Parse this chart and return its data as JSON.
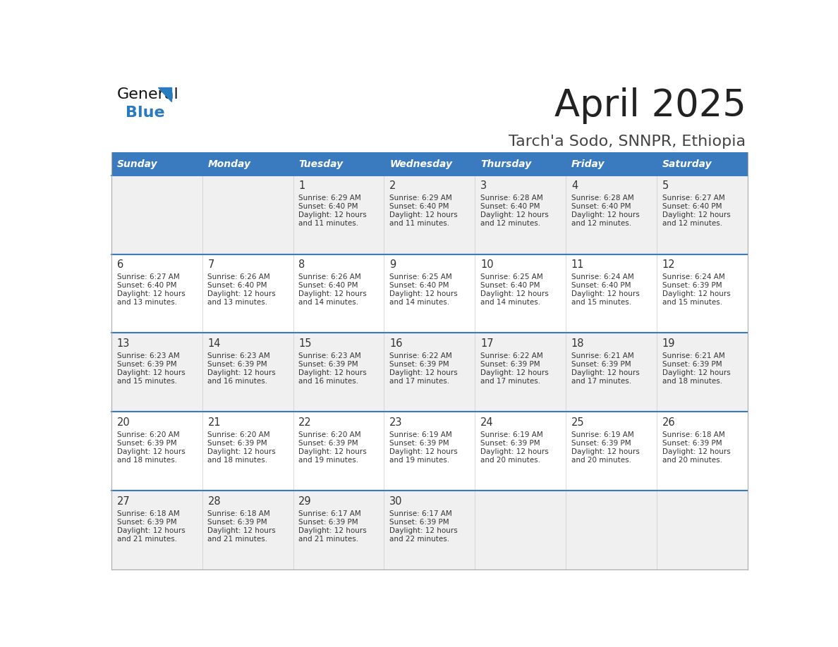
{
  "title": "April 2025",
  "subtitle": "Tarch'a Sodo, SNNPR, Ethiopia",
  "header_bg": "#3a7abf",
  "header_text_color": "#ffffff",
  "row_bg_odd": "#f0f0f0",
  "row_bg_even": "#ffffff",
  "divider_color": "#3a7abf",
  "text_color": "#333333",
  "days_of_week": [
    "Sunday",
    "Monday",
    "Tuesday",
    "Wednesday",
    "Thursday",
    "Friday",
    "Saturday"
  ],
  "calendar_data": [
    [
      {
        "day": "",
        "sunrise": "",
        "sunset": "",
        "daylight_extra": ""
      },
      {
        "day": "",
        "sunrise": "",
        "sunset": "",
        "daylight_extra": ""
      },
      {
        "day": "1",
        "sunrise": "6:29 AM",
        "sunset": "6:40 PM",
        "daylight_extra": "and 11 minutes."
      },
      {
        "day": "2",
        "sunrise": "6:29 AM",
        "sunset": "6:40 PM",
        "daylight_extra": "and 11 minutes."
      },
      {
        "day": "3",
        "sunrise": "6:28 AM",
        "sunset": "6:40 PM",
        "daylight_extra": "and 12 minutes."
      },
      {
        "day": "4",
        "sunrise": "6:28 AM",
        "sunset": "6:40 PM",
        "daylight_extra": "and 12 minutes."
      },
      {
        "day": "5",
        "sunrise": "6:27 AM",
        "sunset": "6:40 PM",
        "daylight_extra": "and 12 minutes."
      }
    ],
    [
      {
        "day": "6",
        "sunrise": "6:27 AM",
        "sunset": "6:40 PM",
        "daylight_extra": "and 13 minutes."
      },
      {
        "day": "7",
        "sunrise": "6:26 AM",
        "sunset": "6:40 PM",
        "daylight_extra": "and 13 minutes."
      },
      {
        "day": "8",
        "sunrise": "6:26 AM",
        "sunset": "6:40 PM",
        "daylight_extra": "and 14 minutes."
      },
      {
        "day": "9",
        "sunrise": "6:25 AM",
        "sunset": "6:40 PM",
        "daylight_extra": "and 14 minutes."
      },
      {
        "day": "10",
        "sunrise": "6:25 AM",
        "sunset": "6:40 PM",
        "daylight_extra": "and 14 minutes."
      },
      {
        "day": "11",
        "sunrise": "6:24 AM",
        "sunset": "6:40 PM",
        "daylight_extra": "and 15 minutes."
      },
      {
        "day": "12",
        "sunrise": "6:24 AM",
        "sunset": "6:39 PM",
        "daylight_extra": "and 15 minutes."
      }
    ],
    [
      {
        "day": "13",
        "sunrise": "6:23 AM",
        "sunset": "6:39 PM",
        "daylight_extra": "and 15 minutes."
      },
      {
        "day": "14",
        "sunrise": "6:23 AM",
        "sunset": "6:39 PM",
        "daylight_extra": "and 16 minutes."
      },
      {
        "day": "15",
        "sunrise": "6:23 AM",
        "sunset": "6:39 PM",
        "daylight_extra": "and 16 minutes."
      },
      {
        "day": "16",
        "sunrise": "6:22 AM",
        "sunset": "6:39 PM",
        "daylight_extra": "and 17 minutes."
      },
      {
        "day": "17",
        "sunrise": "6:22 AM",
        "sunset": "6:39 PM",
        "daylight_extra": "and 17 minutes."
      },
      {
        "day": "18",
        "sunrise": "6:21 AM",
        "sunset": "6:39 PM",
        "daylight_extra": "and 17 minutes."
      },
      {
        "day": "19",
        "sunrise": "6:21 AM",
        "sunset": "6:39 PM",
        "daylight_extra": "and 18 minutes."
      }
    ],
    [
      {
        "day": "20",
        "sunrise": "6:20 AM",
        "sunset": "6:39 PM",
        "daylight_extra": "and 18 minutes."
      },
      {
        "day": "21",
        "sunrise": "6:20 AM",
        "sunset": "6:39 PM",
        "daylight_extra": "and 18 minutes."
      },
      {
        "day": "22",
        "sunrise": "6:20 AM",
        "sunset": "6:39 PM",
        "daylight_extra": "and 19 minutes."
      },
      {
        "day": "23",
        "sunrise": "6:19 AM",
        "sunset": "6:39 PM",
        "daylight_extra": "and 19 minutes."
      },
      {
        "day": "24",
        "sunrise": "6:19 AM",
        "sunset": "6:39 PM",
        "daylight_extra": "and 20 minutes."
      },
      {
        "day": "25",
        "sunrise": "6:19 AM",
        "sunset": "6:39 PM",
        "daylight_extra": "and 20 minutes."
      },
      {
        "day": "26",
        "sunrise": "6:18 AM",
        "sunset": "6:39 PM",
        "daylight_extra": "and 20 minutes."
      }
    ],
    [
      {
        "day": "27",
        "sunrise": "6:18 AM",
        "sunset": "6:39 PM",
        "daylight_extra": "and 21 minutes."
      },
      {
        "day": "28",
        "sunrise": "6:18 AM",
        "sunset": "6:39 PM",
        "daylight_extra": "and 21 minutes."
      },
      {
        "day": "29",
        "sunrise": "6:17 AM",
        "sunset": "6:39 PM",
        "daylight_extra": "and 21 minutes."
      },
      {
        "day": "30",
        "sunrise": "6:17 AM",
        "sunset": "6:39 PM",
        "daylight_extra": "and 22 minutes."
      },
      {
        "day": "",
        "sunrise": "",
        "sunset": "",
        "daylight_extra": ""
      },
      {
        "day": "",
        "sunrise": "",
        "sunset": "",
        "daylight_extra": ""
      },
      {
        "day": "",
        "sunrise": "",
        "sunset": "",
        "daylight_extra": ""
      }
    ]
  ]
}
